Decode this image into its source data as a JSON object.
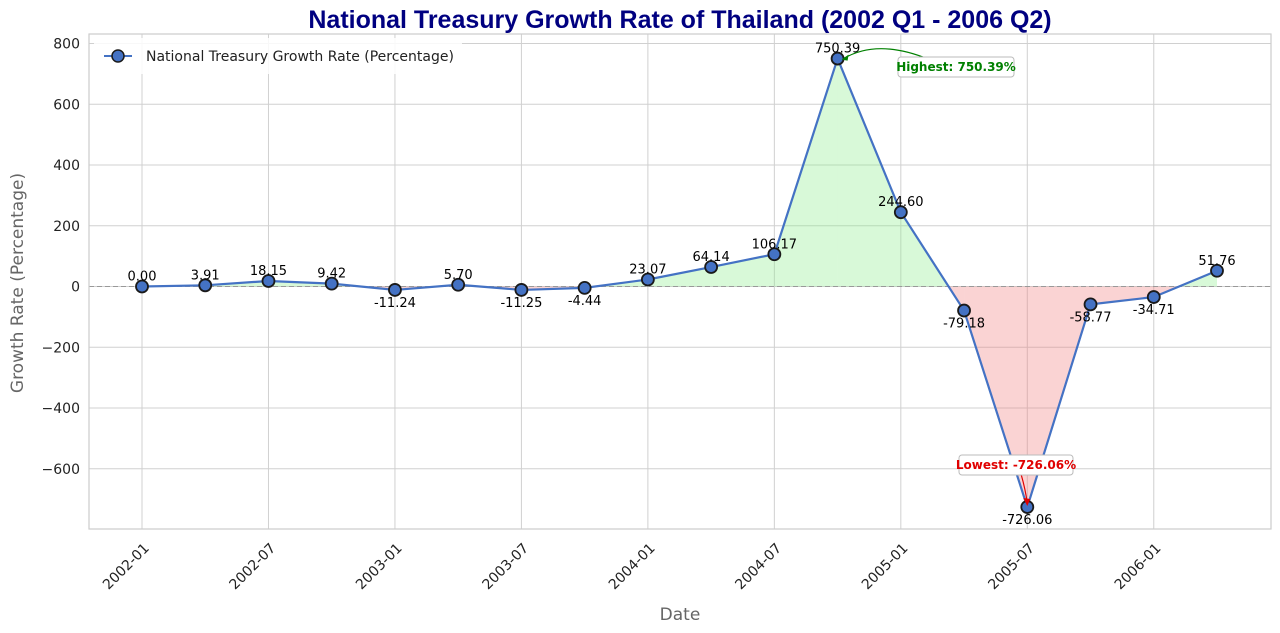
{
  "chart_data": {
    "type": "line",
    "title": "National Treasury Growth Rate of Thailand (2002 Q1 - 2006 Q2)",
    "xlabel": "Date",
    "ylabel": "Growth Rate (Percentage)",
    "ylim": [
      -800,
      820
    ],
    "yticks": [
      -600,
      -400,
      -200,
      0,
      200,
      400,
      600,
      800
    ],
    "ytick_labels": [
      "−600",
      "−400",
      "−200",
      "0",
      "200",
      "400",
      "600",
      "800"
    ],
    "xticks": [
      "2002-01",
      "2002-07",
      "2003-01",
      "2003-07",
      "2004-01",
      "2004-07",
      "2005-01",
      "2005-07",
      "2006-01"
    ],
    "x": [
      "2002-01",
      "2002-04",
      "2002-07",
      "2002-10",
      "2003-01",
      "2003-04",
      "2003-07",
      "2003-10",
      "2004-01",
      "2004-04",
      "2004-07",
      "2004-10",
      "2005-01",
      "2005-04",
      "2005-07",
      "2005-10",
      "2006-01",
      "2006-04"
    ],
    "series": [
      {
        "name": "National Treasury Growth Rate (Percentage)",
        "values": [
          0.0,
          3.91,
          18.15,
          9.42,
          -11.24,
          5.7,
          -11.25,
          -4.44,
          23.07,
          64.14,
          106.17,
          750.39,
          244.6,
          -79.18,
          -726.06,
          -58.77,
          -34.71,
          51.76
        ],
        "labels": [
          "0.00",
          "3.91",
          "18.15",
          "9.42",
          "-11.24",
          "5.70",
          "-11.25",
          "-4.44",
          "23.07",
          "64.14",
          "106.17",
          "750.39",
          "244.60",
          "-79.18",
          "-726.06",
          "-58.77",
          "-34.71",
          "51.76"
        ]
      }
    ],
    "annotations": {
      "highest": "Highest: 750.39%",
      "lowest": "Lowest: -726.06%"
    },
    "legend_position": "top-left",
    "grid": true,
    "colors": {
      "line": "#4472c4",
      "marker_fill": "#4472c4",
      "marker_edge": "#1a1a1a",
      "pos_fill": "#90ee90",
      "neg_fill": "#f08080",
      "title": "#000080",
      "highest": "#008000",
      "lowest": "#e00000",
      "grid": "#d0d0d0",
      "zero_line": "#999999"
    }
  }
}
